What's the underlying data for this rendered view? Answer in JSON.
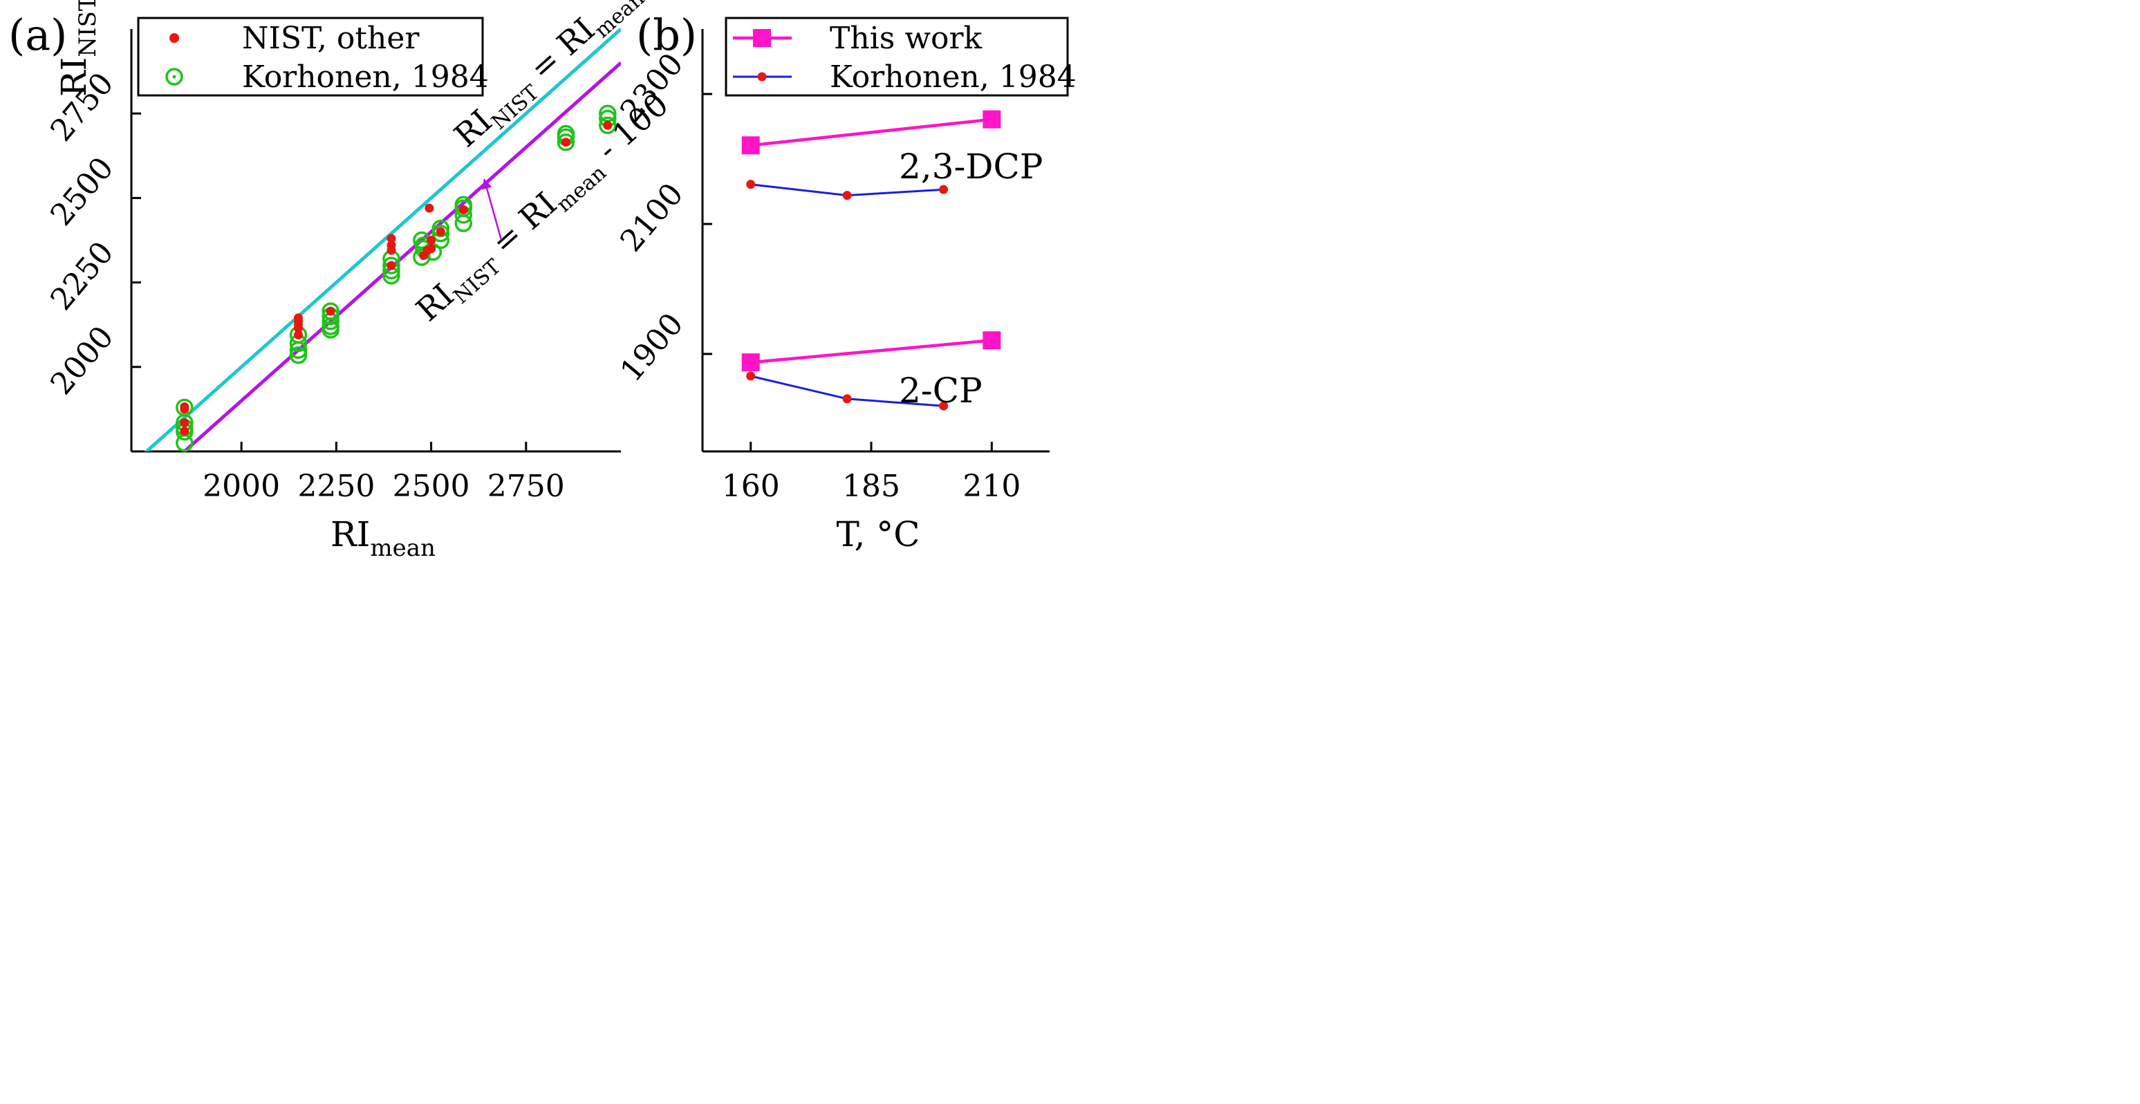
{
  "chart_data": [
    {
      "panel": "(a)",
      "type": "scatter",
      "xlabel": {
        "main": "RI",
        "sub": "mean"
      },
      "ylabel": {
        "main": "RI",
        "sub": "NIST"
      },
      "xlim": [
        1710,
        3000
      ],
      "ylim": [
        1750,
        3000
      ],
      "xticks": [
        2000,
        2250,
        2500,
        2750
      ],
      "yticks": [
        2000,
        2250,
        2500,
        2750
      ],
      "legend": {
        "position": "top-left",
        "entries": [
          {
            "label": "NIST, other",
            "marker": "red-dot"
          },
          {
            "label": "Korhonen, 1984",
            "marker": "green-circle"
          }
        ]
      },
      "lines": [
        {
          "name": "RI_NIST = RI_mean",
          "offset": 0,
          "color": "#1fc7cf",
          "label": {
            "p1": "RI",
            "s1": "NIST",
            "p2": " = RI",
            "s2": "mean",
            "p3": ""
          }
        },
        {
          "name": "RI_NIST = RI_mean - 100",
          "offset": -100,
          "color": "#b414e6",
          "label": {
            "p1": "RI",
            "s1": "NIST",
            "p2": " = RI",
            "s2": "mean",
            "p3": " - 100"
          }
        }
      ],
      "series": [
        {
          "name": "NIST, other",
          "color": "#e8170f",
          "points": [
            [
              1850,
              1882
            ],
            [
              1850,
              1875
            ],
            [
              1850,
              1835
            ],
            [
              1850,
              1810
            ],
            [
              2150,
              2145
            ],
            [
              2150,
              2135
            ],
            [
              2150,
              2125
            ],
            [
              2150,
              2115
            ],
            [
              2150,
              2095
            ],
            [
              2235,
              2165
            ],
            [
              2395,
              2380
            ],
            [
              2395,
              2360
            ],
            [
              2395,
              2345
            ],
            [
              2395,
              2300
            ],
            [
              2480,
              2330
            ],
            [
              2490,
              2345
            ],
            [
              2495,
              2470
            ],
            [
              2500,
              2375
            ],
            [
              2500,
              2350
            ],
            [
              2525,
              2400
            ],
            [
              2585,
              2465
            ],
            [
              2855,
              2665
            ],
            [
              2965,
              2715
            ]
          ]
        },
        {
          "name": "Korhonen, 1984",
          "color": "#1fc31a",
          "points": [
            [
              1850,
              1880
            ],
            [
              1850,
              1835
            ],
            [
              1850,
              1820
            ],
            [
              1850,
              1808
            ],
            [
              1850,
              1775
            ],
            [
              2150,
              2095
            ],
            [
              2150,
              2070
            ],
            [
              2150,
              2050
            ],
            [
              2150,
              2035
            ],
            [
              2235,
              2165
            ],
            [
              2235,
              2150
            ],
            [
              2235,
              2135
            ],
            [
              2235,
              2120
            ],
            [
              2235,
              2110
            ],
            [
              2395,
              2320
            ],
            [
              2395,
              2300
            ],
            [
              2395,
              2285
            ],
            [
              2395,
              2270
            ],
            [
              2475,
              2375
            ],
            [
              2480,
              2360
            ],
            [
              2480,
              2350
            ],
            [
              2475,
              2325
            ],
            [
              2505,
              2340
            ],
            [
              2525,
              2410
            ],
            [
              2525,
              2395
            ],
            [
              2525,
              2375
            ],
            [
              2585,
              2480
            ],
            [
              2585,
              2470
            ],
            [
              2585,
              2450
            ],
            [
              2585,
              2425
            ],
            [
              2855,
              2690
            ],
            [
              2855,
              2680
            ],
            [
              2855,
              2665
            ],
            [
              2965,
              2750
            ],
            [
              2965,
              2735
            ],
            [
              2965,
              2715
            ]
          ]
        }
      ],
      "arrow": {
        "from": [
          2685,
          2375
        ],
        "to": [
          2640,
          2555
        ]
      }
    },
    {
      "panel": "(b)",
      "type": "line",
      "xlabel": "T, °C",
      "xlim": [
        150,
        222
      ],
      "ylim": [
        1750,
        2400
      ],
      "xticks": [
        160,
        185,
        210
      ],
      "yticks": [
        1900,
        2100,
        2300
      ],
      "legend": {
        "position": "top",
        "entries": [
          {
            "label": "This work",
            "marker": "magenta-square"
          },
          {
            "label": "Korhonen, 1984",
            "marker": "blue-dot-line"
          }
        ]
      },
      "groups": [
        {
          "label": "2,3-DCP",
          "series": [
            {
              "name": "This work",
              "color": "#ff14c8",
              "x": [
                160,
                210
              ],
              "y": [
                2221,
                2261
              ]
            },
            {
              "name": "Korhonen, 1984",
              "color": "#1a1ee0",
              "x": [
                160,
                180,
                200
              ],
              "y": [
                2161,
                2144,
                2153
              ]
            }
          ]
        },
        {
          "label": "2-CP",
          "series": [
            {
              "name": "This work",
              "color": "#ff14c8",
              "x": [
                160,
                210
              ],
              "y": [
                1887,
                1921
              ]
            },
            {
              "name": "Korhonen, 1984",
              "color": "#1a1ee0",
              "x": [
                160,
                180,
                200
              ],
              "y": [
                1866,
                1831,
                1820
              ]
            }
          ]
        }
      ]
    }
  ]
}
